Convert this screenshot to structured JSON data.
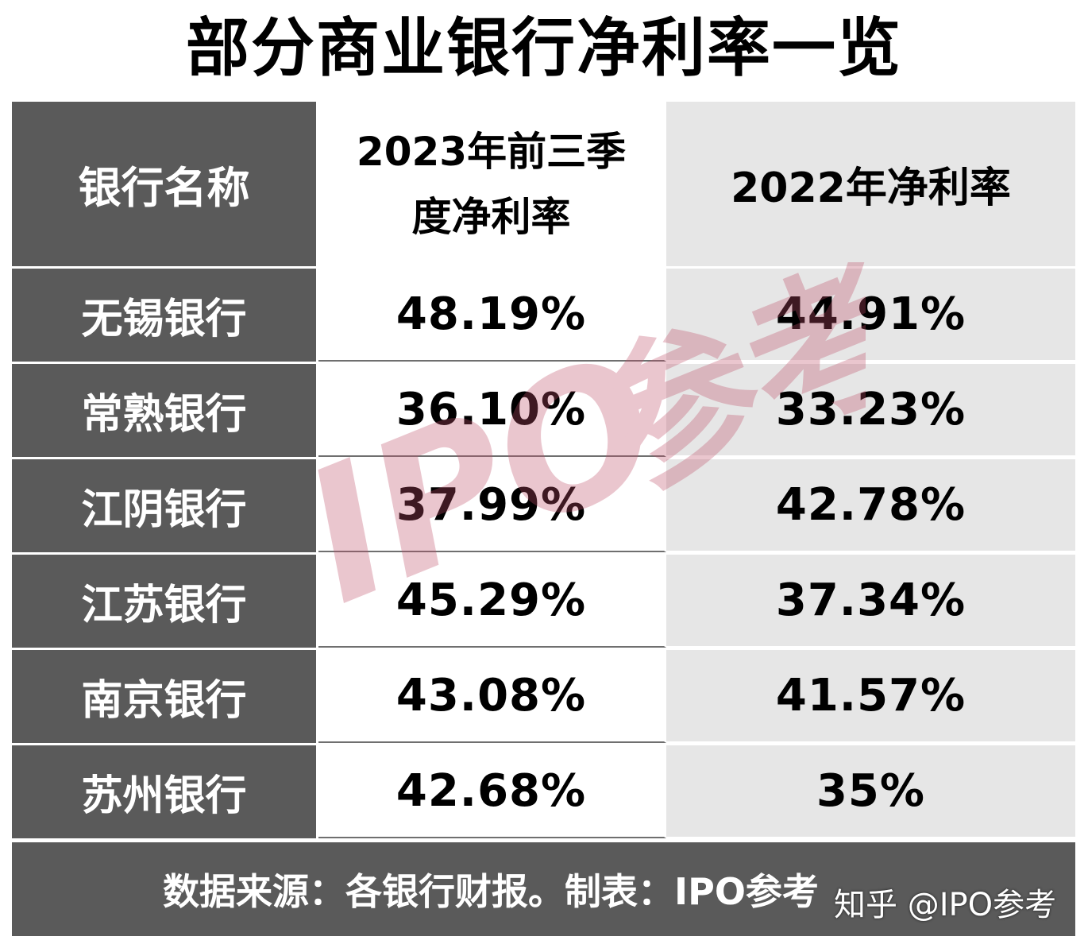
{
  "title": "部分商业银行净利率一览",
  "chart_data": {
    "type": "table",
    "title": "部分商业银行净利率一览",
    "columns": [
      "银行名称",
      "2023年前三季度净利率",
      "2022年净利率"
    ],
    "header": {
      "bank": "银行名称",
      "q3_2023_line1": "2023年前三季",
      "q3_2023_line2": "度净利率",
      "y2022": "2022年净利率"
    },
    "rows": [
      {
        "bank": "无锡银行",
        "q3_2023": "48.19%",
        "y2022": "44.91%"
      },
      {
        "bank": "常熟银行",
        "q3_2023": "36.10%",
        "y2022": "33.23%"
      },
      {
        "bank": "江阴银行",
        "q3_2023": "37.99%",
        "y2022": "42.78%"
      },
      {
        "bank": "江苏银行",
        "q3_2023": "45.29%",
        "y2022": "37.34%"
      },
      {
        "bank": "南京银行",
        "q3_2023": "43.08%",
        "y2022": "41.57%"
      },
      {
        "bank": "苏州银行",
        "q3_2023": "42.68%",
        "y2022": "35%"
      }
    ]
  },
  "footer": "数据来源：各银行财报。制表：IPO参考",
  "credit": "知乎 @IPO参考",
  "watermark": "IPO参考",
  "colors": {
    "header_dark": "#5a5a5a",
    "col3_bg": "#e6e6e6",
    "watermark": "#c0506a"
  }
}
